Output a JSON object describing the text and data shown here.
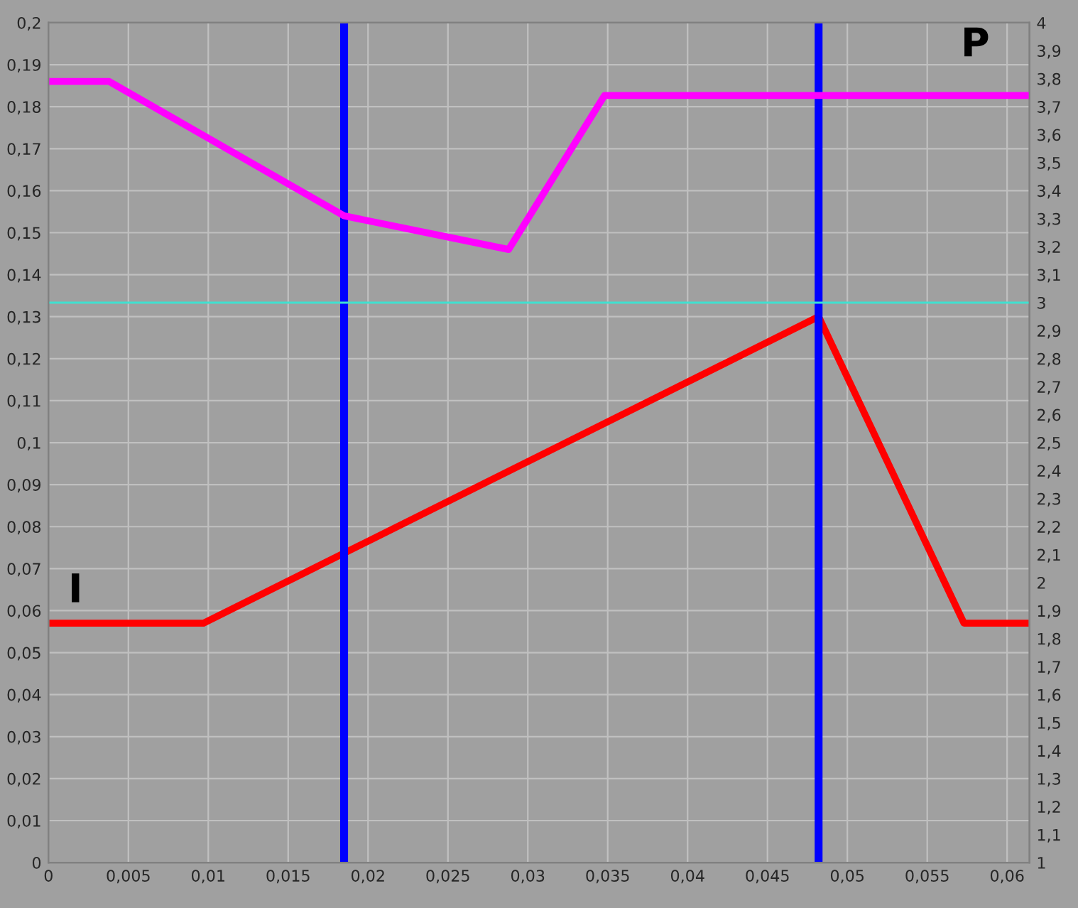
{
  "chart_data": {
    "type": "line",
    "series": [
      {
        "color": "#ff0000",
        "x": [
          0,
          0.0097,
          0.0482,
          0.0573,
          0.0614
        ],
        "values": [
          0.057,
          0.057,
          0.13,
          0.057,
          0.057
        ]
      },
      {
        "color": "#ff00ff",
        "axis": "y2",
        "x": [
          0,
          0.0038,
          0.0185,
          0.0288,
          0.0348,
          0.0614
        ],
        "values": [
          3.79,
          3.79,
          3.31,
          3.19,
          3.74,
          3.74
        ]
      }
    ],
    "xlim": [
      0,
      0.0614
    ],
    "xticks": [
      0,
      {
        "value": 0.005,
        "label": "0,005"
      },
      {
        "value": 0.01,
        "label": "0,01"
      },
      {
        "value": 0.015,
        "label": "0,015"
      },
      {
        "value": 0.02,
        "label": "0,02"
      },
      {
        "value": 0.025,
        "label": "0,025"
      },
      {
        "value": 0.03,
        "label": "0,03"
      },
      {
        "value": 0.035,
        "label": "0,035"
      },
      {
        "value": 0.04,
        "label": "0,04"
      },
      {
        "value": 0.045,
        "label": "0,045"
      },
      {
        "value": 0.05,
        "label": "0,05"
      },
      {
        "value": 0.055,
        "label": "0,055"
      },
      {
        "value": 0.06,
        "label": "0,06"
      }
    ],
    "ylim": [
      0,
      0.2
    ],
    "yticks": [
      0,
      {
        "value": 0.01,
        "label": "0,01"
      },
      {
        "value": 0.02,
        "label": "0,02"
      },
      {
        "value": 0.03,
        "label": "0,03"
      },
      {
        "value": 0.04,
        "label": "0,04"
      },
      {
        "value": 0.05,
        "label": "0,05"
      },
      {
        "value": 0.06,
        "label": "0,06"
      },
      {
        "value": 0.07,
        "label": "0,07"
      },
      {
        "value": 0.08,
        "label": "0,08"
      },
      {
        "value": 0.09,
        "label": "0,09"
      },
      {
        "value": 0.1,
        "label": "0,1"
      },
      {
        "value": 0.11,
        "label": "0,11"
      },
      {
        "value": 0.12,
        "label": "0,12"
      },
      {
        "value": 0.13,
        "label": "0,13"
      },
      {
        "value": 0.14,
        "label": "0,14"
      },
      {
        "value": 0.15,
        "label": "0,15"
      },
      {
        "value": 0.16,
        "label": "0,16"
      },
      {
        "value": 0.17,
        "label": "0,17"
      },
      {
        "value": 0.18,
        "label": "0,18"
      },
      {
        "value": 0.19,
        "label": "0,19"
      },
      {
        "value": 0.2,
        "label": "0,2"
      }
    ],
    "y2lim": [
      1,
      4
    ],
    "y2ticks": [
      1,
      {
        "value": 1.1,
        "label": "1,1"
      },
      {
        "value": 1.2,
        "label": "1,2"
      },
      {
        "value": 1.3,
        "label": "1,3"
      },
      {
        "value": 1.4,
        "label": "1,4"
      },
      {
        "value": 1.5,
        "label": "1,5"
      },
      {
        "value": 1.6,
        "label": "1,6"
      },
      {
        "value": 1.7,
        "label": "1,7"
      },
      {
        "value": 1.8,
        "label": "1,8"
      },
      {
        "value": 1.9,
        "label": "1,9"
      },
      2,
      {
        "value": 2.1,
        "label": "2,1"
      },
      {
        "value": 2.2,
        "label": "2,2"
      },
      {
        "value": 2.3,
        "label": "2,3"
      },
      {
        "value": 2.4,
        "label": "2,4"
      },
      {
        "value": 2.5,
        "label": "2,5"
      },
      {
        "value": 2.6,
        "label": "2,6"
      },
      {
        "value": 2.7,
        "label": "2,7"
      },
      {
        "value": 2.8,
        "label": "2,8"
      },
      {
        "value": 2.9,
        "label": "2,9"
      },
      3,
      {
        "value": 3.1,
        "label": "3,1"
      },
      {
        "value": 3.2,
        "label": "3,2"
      },
      {
        "value": 3.3,
        "label": "3,3"
      },
      {
        "value": 3.4,
        "label": "3,4"
      },
      {
        "value": 3.5,
        "label": "3,5"
      },
      {
        "value": 3.6,
        "label": "3,6"
      },
      {
        "value": 3.7,
        "label": "3,7"
      },
      {
        "value": 3.8,
        "label": "3,8"
      },
      {
        "value": 3.9,
        "label": "3,9"
      },
      4
    ],
    "ref_lines": [
      {
        "axis": "x",
        "value": 0.0185,
        "color": "#0000ff"
      },
      {
        "axis": "x",
        "value": 0.0482,
        "color": "#0000ff"
      },
      {
        "axis": "y2",
        "value": 3.0,
        "color": "#40e0d0"
      }
    ],
    "annotations": [
      "I",
      "P"
    ],
    "grid": true
  }
}
